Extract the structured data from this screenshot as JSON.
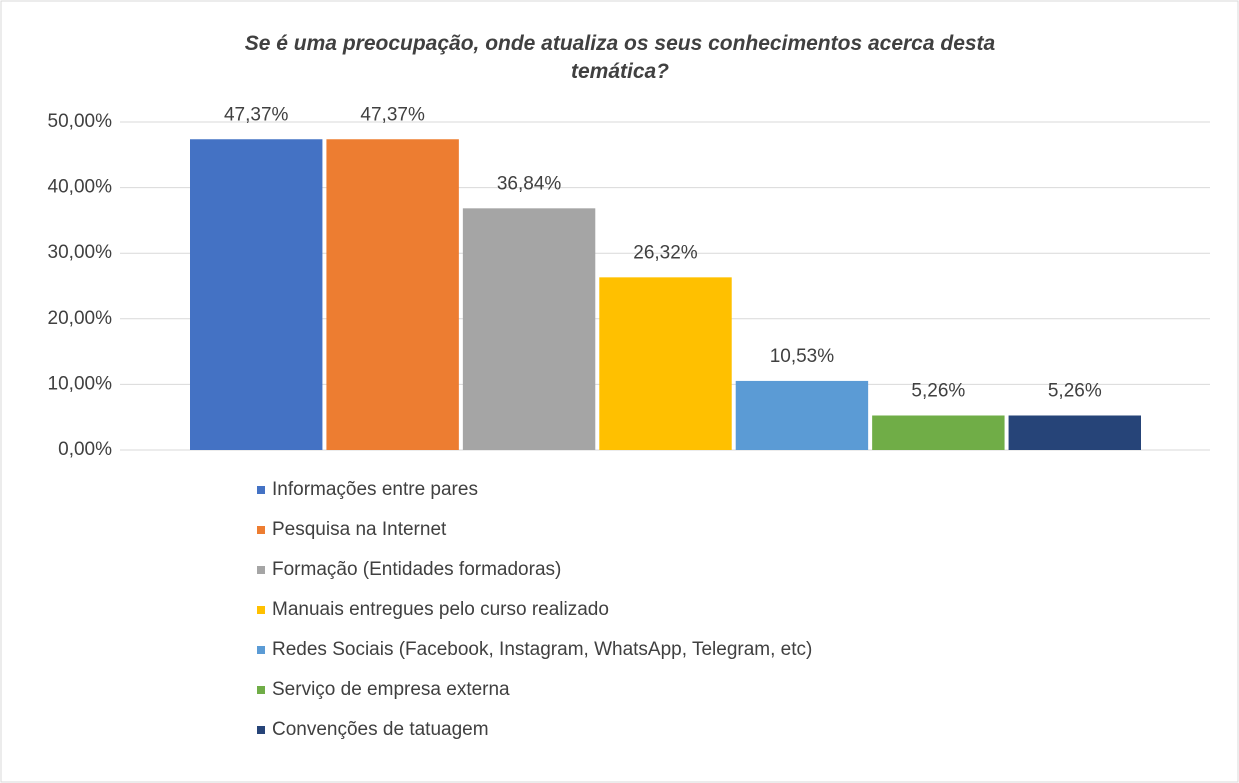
{
  "chart_data": {
    "type": "bar",
    "title": "Se é uma preocupação, onde atualiza os seus conhecimentos acerca desta temática?",
    "categories": [
      null
    ],
    "series": [
      {
        "name": "Informações entre pares",
        "color": "#4472c4",
        "values": [
          47.37
        ],
        "value_labels": [
          "47,37%"
        ]
      },
      {
        "name": "Pesquisa na Internet",
        "color": "#ed7d31",
        "values": [
          47.37
        ],
        "value_labels": [
          "47,37%"
        ]
      },
      {
        "name": "Formação (Entidades formadoras)",
        "color": "#a5a5a5",
        "values": [
          36.84
        ],
        "value_labels": [
          "36,84%"
        ]
      },
      {
        "name": "Manuais entregues pelo curso realizado",
        "color": "#ffc000",
        "values": [
          26.32
        ],
        "value_labels": [
          "26,32%"
        ]
      },
      {
        "name": "Redes Sociais (Facebook, Instagram, WhatsApp, Telegram, etc)",
        "color": "#5b9bd5",
        "values": [
          10.53
        ],
        "value_labels": [
          "10,53%"
        ]
      },
      {
        "name": "Serviço de empresa externa",
        "color": "#70ad47",
        "values": [
          5.26
        ],
        "value_labels": [
          "5,26%"
        ]
      },
      {
        "name": "Convenções de tatuagem",
        "color": "#264478",
        "values": [
          5.26
        ],
        "value_labels": [
          "5,26%"
        ]
      }
    ],
    "ylim": [
      0,
      50
    ],
    "yticks": [
      {
        "value": 0,
        "label": "0,00%"
      },
      {
        "value": 10,
        "label": "10,00%"
      },
      {
        "value": 20,
        "label": "20,00%"
      },
      {
        "value": 30,
        "label": "30,00%"
      },
      {
        "value": 40,
        "label": "40,00%"
      },
      {
        "value": 50,
        "label": "50,00%"
      }
    ],
    "grid": true,
    "legend": "bottom"
  }
}
